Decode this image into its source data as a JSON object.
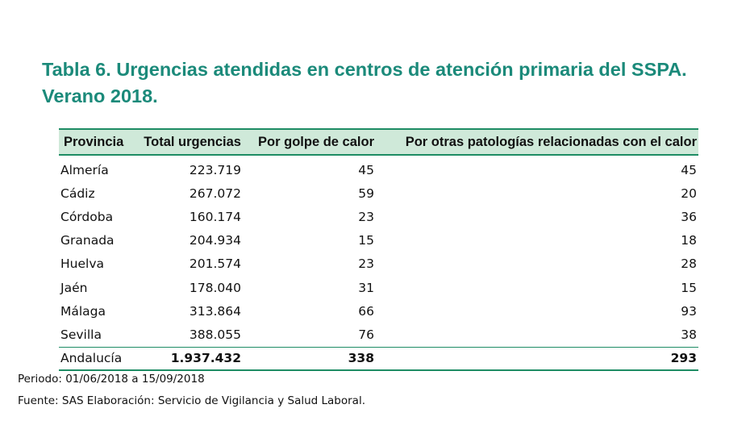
{
  "title": {
    "line1": "Tabla 6. Urgencias atendidas en centros de atención primaria del SSPA.",
    "line2": "Verano 2018."
  },
  "table": {
    "headers": [
      "Provincia",
      "Total urgencias",
      "Por golpe de calor",
      "Por otras patologías relacionadas con el calor"
    ],
    "rows": [
      [
        "Almería",
        "223.719",
        "45",
        "45"
      ],
      [
        "Cádiz",
        "267.072",
        "59",
        "20"
      ],
      [
        "Córdoba",
        "160.174",
        "23",
        "36"
      ],
      [
        "Granada",
        "204.934",
        "15",
        "18"
      ],
      [
        "Huelva",
        "201.574",
        "23",
        "28"
      ],
      [
        "Jaén",
        "178.040",
        "31",
        "15"
      ],
      [
        "Málaga",
        "313.864",
        "66",
        "93"
      ],
      [
        "Sevilla",
        "388.055",
        "76",
        "38"
      ]
    ],
    "total": [
      "Andalucía",
      "1.937.432",
      "338",
      "293"
    ]
  },
  "notes": {
    "periodo": "Periodo: 01/06/2018 a 15/09/2018",
    "fuente": "Fuente: SAS  Elaboración: Servicio de Vigilancia y Salud Laboral."
  },
  "colors": {
    "title": "#1b8a7a",
    "header_bg": "#cfe9d9",
    "rule": "#1e8c64"
  }
}
